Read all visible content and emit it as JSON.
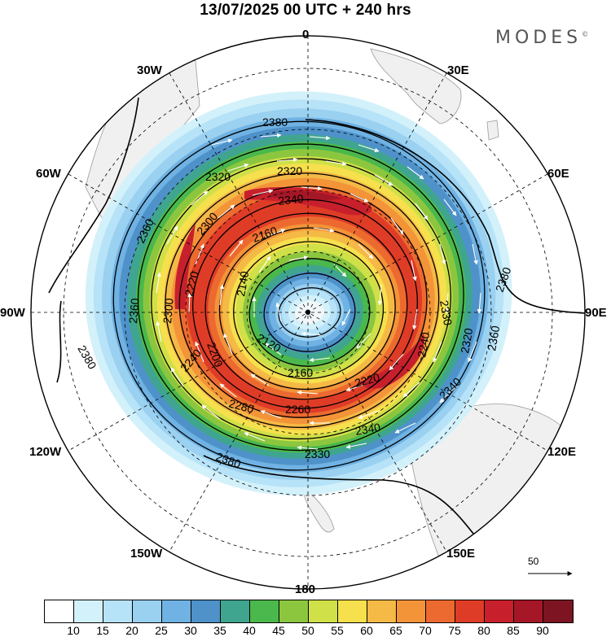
{
  "header": {
    "title": "13/07/2025  00 UTC  + 240 hrs",
    "brand": "MODES",
    "brand_mark": "©"
  },
  "map": {
    "projection": "polar stereographic (south pole)",
    "longitude_labels": [
      "0",
      "30E",
      "60E",
      "90E",
      "120E",
      "150E",
      "180",
      "150W",
      "120W",
      "90W",
      "60W",
      "30W"
    ],
    "contour_labels": [
      "2380",
      "2320",
      "2320",
      "2340",
      "2360",
      "2300",
      "2160",
      "2140",
      "2220",
      "2380",
      "2360",
      "2330",
      "2300",
      "2240",
      "2320",
      "2200",
      "2360",
      "2120",
      "2380",
      "2240",
      "2340",
      "2160",
      "2220",
      "2280",
      "2260",
      "2340",
      "2380",
      "2330"
    ],
    "shading_field": "wind speed",
    "vector_reference": "50"
  },
  "legend": {
    "levels": [
      "10",
      "15",
      "20",
      "25",
      "30",
      "35",
      "40",
      "45",
      "50",
      "55",
      "60",
      "65",
      "70",
      "75",
      "80",
      "85",
      "90"
    ],
    "colors": [
      "#ffffff",
      "#d3f1fa",
      "#b7e3f8",
      "#9ad0f0",
      "#6fb2e3",
      "#4e92c9",
      "#3fa58f",
      "#4ab84c",
      "#8cc63f",
      "#cfe048",
      "#f6e04d",
      "#f5b946",
      "#f39439",
      "#ec6a2f",
      "#df3c27",
      "#c7202c",
      "#a51727",
      "#7c1422"
    ]
  }
}
